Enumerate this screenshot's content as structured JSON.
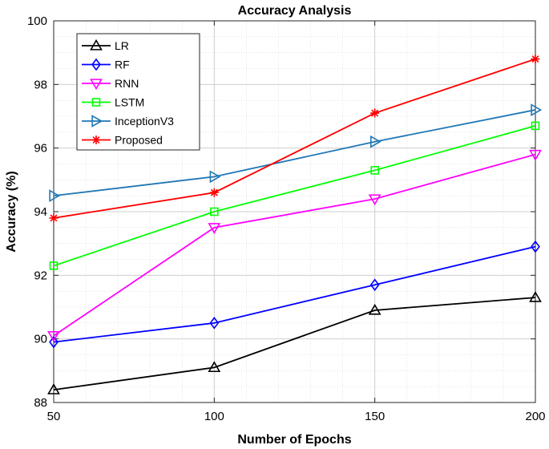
{
  "chart_data": {
    "type": "line",
    "title": "Accuracy Analysis",
    "xlabel": "Number of Epochs",
    "ylabel": "Accuracy (%)",
    "x": [
      50,
      100,
      150,
      200
    ],
    "xlim": [
      50,
      200
    ],
    "ylim": [
      88,
      100
    ],
    "xticks": [
      50,
      100,
      150,
      200
    ],
    "yticks": [
      88,
      90,
      92,
      94,
      96,
      98,
      100
    ],
    "grid": true,
    "minor_grid": true,
    "legend_position": "top-left",
    "series": [
      {
        "name": "LR",
        "marker": "triangle-up",
        "color": "#000000",
        "values": [
          88.4,
          89.1,
          90.9,
          91.3
        ]
      },
      {
        "name": "RF",
        "marker": "diamond",
        "color": "#0000ff",
        "values": [
          89.9,
          90.5,
          91.7,
          92.9
        ]
      },
      {
        "name": "RNN",
        "marker": "triangle-down",
        "color": "#ff00ff",
        "values": [
          90.1,
          93.5,
          94.4,
          95.8
        ]
      },
      {
        "name": "LSTM",
        "marker": "square",
        "color": "#00ff00",
        "values": [
          92.3,
          94.0,
          95.3,
          96.7
        ]
      },
      {
        "name": "InceptionV3",
        "marker": "triangle-right",
        "color": "#1f77b4",
        "values": [
          94.5,
          95.1,
          96.2,
          97.2
        ]
      },
      {
        "name": "Proposed",
        "marker": "asterisk",
        "color": "#ff0000",
        "values": [
          93.8,
          94.6,
          97.1,
          98.8
        ]
      }
    ]
  }
}
